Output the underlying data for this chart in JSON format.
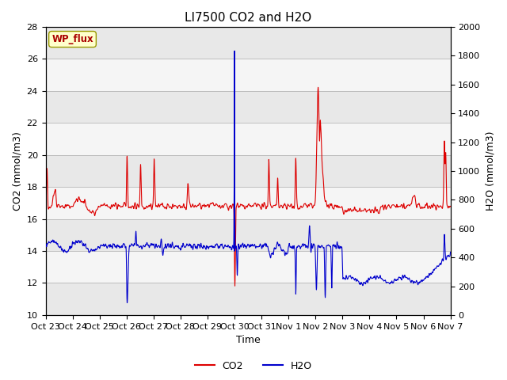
{
  "title": "LI7500 CO2 and H2O",
  "xlabel": "Time",
  "ylabel_left": "CO2 (mmol/m3)",
  "ylabel_right": "H2O (mmol/m3)",
  "ylim_left": [
    10,
    28
  ],
  "ylim_right": [
    0,
    2000
  ],
  "co2_color": "#dd0000",
  "h2o_color": "#0000cc",
  "bg_color": "#ffffff",
  "annotation_text": "WP_flux",
  "annotation_color": "#aa0000",
  "annotation_bg": "#ffffcc",
  "legend_co2": "CO2",
  "legend_h2o": "H2O",
  "title_fontsize": 11,
  "axis_fontsize": 9,
  "tick_fontsize": 8,
  "legend_fontsize": 9,
  "left_yticks": [
    10,
    12,
    14,
    16,
    18,
    20,
    22,
    24,
    26,
    28
  ],
  "right_yticks": [
    0,
    200,
    400,
    600,
    800,
    1000,
    1200,
    1400,
    1600,
    1800,
    2000
  ],
  "band_colors": [
    "#e8e8e8",
    "#f5f5f5"
  ]
}
